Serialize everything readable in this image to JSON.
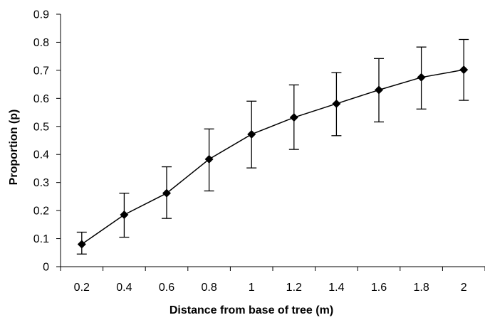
{
  "chart_data": {
    "type": "line",
    "title": "",
    "xlabel": "Distance from base of tree (m)",
    "ylabel": "Proportion (p)",
    "x": [
      "0.2",
      "0.4",
      "0.6",
      "0.8",
      "1",
      "1.2",
      "1.4",
      "1.6",
      "1.8",
      "2"
    ],
    "ylim": [
      0,
      0.9
    ],
    "yticks": [
      "0",
      "0.1",
      "0.2",
      "0.3",
      "0.4",
      "0.5",
      "0.6",
      "0.7",
      "0.8",
      "0.9"
    ],
    "grid": false,
    "legend": "none",
    "marker": "diamond",
    "color": "#000000",
    "series": [
      {
        "values": [
          0.08,
          0.185,
          0.262,
          0.383,
          0.472,
          0.532,
          0.581,
          0.63,
          0.675,
          0.702
        ],
        "error_upper": [
          0.123,
          0.262,
          0.356,
          0.491,
          0.59,
          0.648,
          0.692,
          0.742,
          0.783,
          0.81
        ],
        "error_lower": [
          0.045,
          0.105,
          0.172,
          0.27,
          0.352,
          0.418,
          0.467,
          0.516,
          0.562,
          0.593
        ]
      }
    ]
  }
}
